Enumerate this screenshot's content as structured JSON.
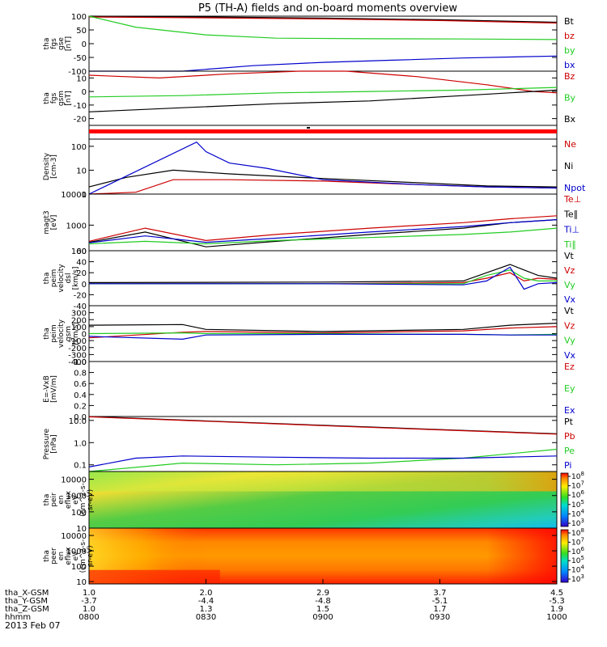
{
  "title": "P5 (TH-A) fields and on-board moments overview",
  "colors": {
    "black": "#000000",
    "red": "#cc0000",
    "green": "#22cc22",
    "blue": "#0000cc",
    "spec_red": "#ff0000",
    "spec_orange": "#ff8800",
    "spec_yellow": "#ffee00",
    "spec_green": "#33cc33",
    "spec_cyan": "#00ddcc",
    "spec_blue": "#0000ff"
  },
  "chart_data": [
    {
      "id": "fgs_gse",
      "type": "line",
      "ylabel": [
        "tha",
        "fgs",
        "gse",
        "[nT]"
      ],
      "ylim": [
        -100,
        100
      ],
      "yticks": [
        "100",
        "50",
        "0",
        "-50",
        "-100"
      ],
      "series": [
        {
          "name": "Bt",
          "color": "black",
          "x": [
            0.0,
            0.25,
            0.5,
            0.75,
            1.0
          ],
          "y": [
            100,
            97,
            93,
            87,
            78
          ]
        },
        {
          "name": "bz",
          "color": "red",
          "x": [
            0.0,
            0.25,
            0.5,
            0.75,
            1.0
          ],
          "y": [
            97,
            94,
            90,
            84,
            75
          ]
        },
        {
          "name": "by",
          "color": "green",
          "x": [
            0.0,
            0.1,
            0.25,
            0.4,
            0.6,
            0.8,
            1.0
          ],
          "y": [
            100,
            60,
            32,
            20,
            18,
            17,
            15
          ]
        },
        {
          "name": "bx",
          "color": "blue",
          "x": [
            0.0,
            0.2,
            0.35,
            0.5,
            0.65,
            0.8,
            1.0
          ],
          "y": [
            -125,
            -100,
            -80,
            -68,
            -60,
            -52,
            -45
          ]
        }
      ]
    },
    {
      "id": "fgs_gsm",
      "type": "line",
      "ylabel": [
        "tha",
        "fgs",
        "gsm",
        "[nT]"
      ],
      "ylim": [
        -25,
        15
      ],
      "yticks": [
        "10",
        "0",
        "-10",
        "-20"
      ],
      "series": [
        {
          "name": "Bz",
          "color": "red",
          "x": [
            0.0,
            0.15,
            0.3,
            0.45,
            0.55,
            0.7,
            0.85,
            0.95,
            1.0
          ],
          "y": [
            12,
            10,
            13,
            16,
            15,
            11,
            5,
            0,
            -1
          ]
        },
        {
          "name": "By",
          "color": "green",
          "x": [
            0.0,
            0.2,
            0.4,
            0.6,
            0.8,
            1.0
          ],
          "y": [
            -4,
            -3,
            -1,
            0,
            1,
            3
          ]
        },
        {
          "name": "Bx",
          "color": "black",
          "x": [
            0.0,
            0.2,
            0.4,
            0.6,
            0.8,
            1.0
          ],
          "y": [
            -15,
            -12,
            -9,
            -7,
            -3,
            1
          ]
        }
      ]
    },
    {
      "id": "density",
      "type": "line",
      "ylabel": [
        "Density",
        "[cm-3]"
      ],
      "yscale": "log",
      "ylim": [
        1,
        200
      ],
      "yticks": [
        "100",
        "10",
        "1"
      ],
      "series": [
        {
          "name": "Ne",
          "color": "red",
          "x": [
            0.0,
            0.1,
            0.18,
            0.3,
            0.5,
            0.7,
            0.85,
            1.0
          ],
          "y": [
            1.0,
            1.2,
            4.0,
            4.0,
            3.5,
            2.5,
            2.0,
            1.8
          ]
        },
        {
          "name": "Ni",
          "color": "black",
          "x": [
            0.0,
            0.08,
            0.18,
            0.3,
            0.5,
            0.7,
            0.85,
            1.0
          ],
          "y": [
            2.0,
            5.0,
            10.0,
            7.0,
            4.5,
            3.0,
            2.2,
            2.0
          ]
        },
        {
          "name": "Npot",
          "color": "blue",
          "x": [
            0.0,
            0.23,
            0.25,
            0.3,
            0.38,
            0.5,
            0.7,
            0.85,
            1.0
          ],
          "y": [
            1.0,
            150,
            60,
            20,
            12,
            4.0,
            2.5,
            2.0,
            1.8
          ]
        }
      ]
    },
    {
      "id": "temperature",
      "type": "line",
      "ylabel": [
        "magt3",
        "[eV]"
      ],
      "yscale": "log",
      "ylim": [
        150,
        10000
      ],
      "yticks": [
        "10000",
        "1000",
        "100"
      ],
      "series": [
        {
          "name": "Te⊥",
          "color": "red",
          "x": [
            0.0,
            0.12,
            0.25,
            0.4,
            0.6,
            0.8,
            0.9,
            1.0
          ],
          "y": [
            300,
            800,
            320,
            500,
            800,
            1200,
            1600,
            2000
          ]
        },
        {
          "name": "Te∥",
          "color": "black",
          "x": [
            0.0,
            0.12,
            0.25,
            0.4,
            0.6,
            0.8,
            0.9,
            1.0
          ],
          "y": [
            280,
            600,
            200,
            300,
            500,
            800,
            1200,
            1500
          ]
        },
        {
          "name": "Ti⊥",
          "color": "blue",
          "x": [
            0.0,
            0.12,
            0.25,
            0.4,
            0.6,
            0.8,
            0.9,
            1.0
          ],
          "y": [
            270,
            450,
            280,
            380,
            600,
            900,
            1200,
            1500
          ]
        },
        {
          "name": "Ti∥",
          "color": "green",
          "x": [
            0.0,
            0.12,
            0.25,
            0.4,
            0.6,
            0.8,
            0.9,
            1.0
          ],
          "y": [
            250,
            300,
            250,
            320,
            400,
            500,
            600,
            800
          ]
        }
      ]
    },
    {
      "id": "peim_velocity_dsl",
      "type": "line",
      "ylabel": [
        "tha",
        "peim",
        "velocity",
        "dsl",
        "[km/s]"
      ],
      "ylim": [
        -40,
        60
      ],
      "yticks": [
        "60",
        "40",
        "20",
        "0",
        "-20",
        "-40"
      ],
      "series": [
        {
          "name": "Vt",
          "color": "black",
          "x": [
            0.0,
            0.5,
            0.8,
            0.85,
            0.9,
            0.93,
            0.96,
            1.0
          ],
          "y": [
            2,
            3,
            5,
            20,
            35,
            25,
            15,
            10
          ]
        },
        {
          "name": "Vz",
          "color": "red",
          "x": [
            0.0,
            0.5,
            0.8,
            0.85,
            0.9,
            0.93,
            0.96,
            1.0
          ],
          "y": [
            0,
            0,
            2,
            10,
            20,
            5,
            10,
            8
          ]
        },
        {
          "name": "Vy",
          "color": "green",
          "x": [
            0.0,
            0.5,
            0.8,
            0.85,
            0.9,
            0.93,
            0.96,
            1.0
          ],
          "y": [
            0,
            0,
            0,
            15,
            25,
            10,
            5,
            5
          ]
        },
        {
          "name": "Vx",
          "color": "blue",
          "x": [
            0.0,
            0.5,
            0.8,
            0.85,
            0.9,
            0.93,
            0.96,
            1.0
          ],
          "y": [
            0,
            0,
            -2,
            5,
            30,
            -10,
            0,
            2
          ]
        }
      ]
    },
    {
      "id": "peim_velocity_gsm",
      "type": "line",
      "ylabel": [
        "tha",
        "peim",
        "velocity",
        "gsm",
        "[km/s]"
      ],
      "ylim": [
        -400,
        400
      ],
      "yticks": [
        "300",
        "200",
        "100",
        "0",
        "-100",
        "-200",
        "-300",
        "-400"
      ],
      "series": [
        {
          "name": "Vt",
          "color": "black",
          "x": [
            0.0,
            0.2,
            0.25,
            0.5,
            0.8,
            0.9,
            1.0
          ],
          "y": [
            120,
            130,
            60,
            30,
            60,
            120,
            150
          ]
        },
        {
          "name": "Vz",
          "color": "red",
          "x": [
            0.0,
            0.2,
            0.25,
            0.5,
            0.8,
            0.9,
            1.0
          ],
          "y": [
            -60,
            20,
            30,
            10,
            40,
            80,
            100
          ]
        },
        {
          "name": "Vy",
          "color": "green",
          "x": [
            0.0,
            0.2,
            0.25,
            0.5,
            0.8,
            0.9,
            1.0
          ],
          "y": [
            0,
            10,
            0,
            0,
            -10,
            -20,
            -10
          ]
        },
        {
          "name": "Vx",
          "color": "blue",
          "x": [
            0.0,
            0.2,
            0.25,
            0.5,
            0.8,
            0.9,
            1.0
          ],
          "y": [
            -40,
            -80,
            -20,
            -10,
            -10,
            -20,
            -20
          ]
        }
      ]
    },
    {
      "id": "efield",
      "type": "line",
      "ylabel": [
        "E=-VxB",
        "[mV/m]"
      ],
      "ylim": [
        0,
        1
      ],
      "yticks": [
        "1.0",
        "0.8",
        "0.6",
        "0.4",
        "0.2",
        "0.0"
      ],
      "series": [
        {
          "name": "Ez",
          "color": "red",
          "x": [],
          "y": []
        },
        {
          "name": "Ey",
          "color": "green",
          "x": [],
          "y": []
        },
        {
          "name": "Ex",
          "color": "blue",
          "x": [],
          "y": []
        }
      ]
    },
    {
      "id": "pressure",
      "type": "line",
      "ylabel": [
        "Pressure",
        "[nPa]"
      ],
      "yscale": "log",
      "ylim": [
        0.05,
        15
      ],
      "yticks": [
        "10.0",
        "1.0",
        "0.1"
      ],
      "series": [
        {
          "name": "Pt",
          "color": "black",
          "x": [
            0.0,
            0.5,
            1.0
          ],
          "y": [
            15,
            6,
            2.5
          ]
        },
        {
          "name": "Pb",
          "color": "red",
          "x": [
            0.0,
            0.5,
            1.0
          ],
          "y": [
            14.5,
            5.8,
            2.4
          ]
        },
        {
          "name": "Pe",
          "color": "green",
          "x": [
            0.0,
            0.2,
            0.4,
            0.6,
            0.8,
            1.0
          ],
          "y": [
            0.05,
            0.12,
            0.1,
            0.12,
            0.2,
            0.5
          ]
        },
        {
          "name": "Pi",
          "color": "blue",
          "x": [
            0.0,
            0.1,
            0.2,
            0.4,
            0.6,
            0.8,
            1.0
          ],
          "y": [
            0.08,
            0.2,
            0.25,
            0.22,
            0.2,
            0.2,
            0.25
          ]
        }
      ]
    },
    {
      "id": "peir_eflux",
      "type": "heatmap",
      "ylabel": [
        "tha",
        "peir",
        "en",
        "eflux",
        "eV",
        "(cm^2-s-",
        "sr-eV)"
      ],
      "yscale": "log",
      "ylim": [
        10,
        30000
      ],
      "yticks": [
        "10000",
        "1000",
        "100",
        "10"
      ],
      "colorbar": {
        "ticks": [
          "10^8",
          "10^7",
          "10^6",
          "10^5",
          "10^4",
          "10^3"
        ]
      }
    },
    {
      "id": "peer_eflux",
      "type": "heatmap",
      "ylabel": [
        "tha",
        "peer",
        "en",
        "eflux",
        "eV",
        "(cm^2-s-",
        "sr-eV)"
      ],
      "yscale": "log",
      "ylim": [
        7,
        30000
      ],
      "yticks": [
        "10000",
        "1000",
        "100",
        "10"
      ],
      "colorbar": {
        "ticks": [
          "10^8",
          "10^7",
          "10^6",
          "10^5",
          "10^4",
          "10^3"
        ]
      }
    }
  ],
  "xaxis": {
    "row_labels": [
      "tha_X-GSM",
      "tha_Y-GSM",
      "tha_Z-GSM",
      "hhmm"
    ],
    "ticks": [
      {
        "frac": 0.0,
        "values": [
          "1.0",
          "-3.7",
          "1.0",
          "0800"
        ]
      },
      {
        "frac": 0.25,
        "values": [
          "2.0",
          "-4.4",
          "1.3",
          "0830"
        ]
      },
      {
        "frac": 0.5,
        "values": [
          "2.9",
          "-4.8",
          "1.5",
          "0900"
        ]
      },
      {
        "frac": 0.75,
        "values": [
          "3.7",
          "-5.1",
          "1.7",
          "0930"
        ]
      },
      {
        "frac": 1.0,
        "values": [
          "4.5",
          "-5.3",
          "1.9",
          "1000"
        ]
      }
    ],
    "date": "2013 Feb 07"
  }
}
